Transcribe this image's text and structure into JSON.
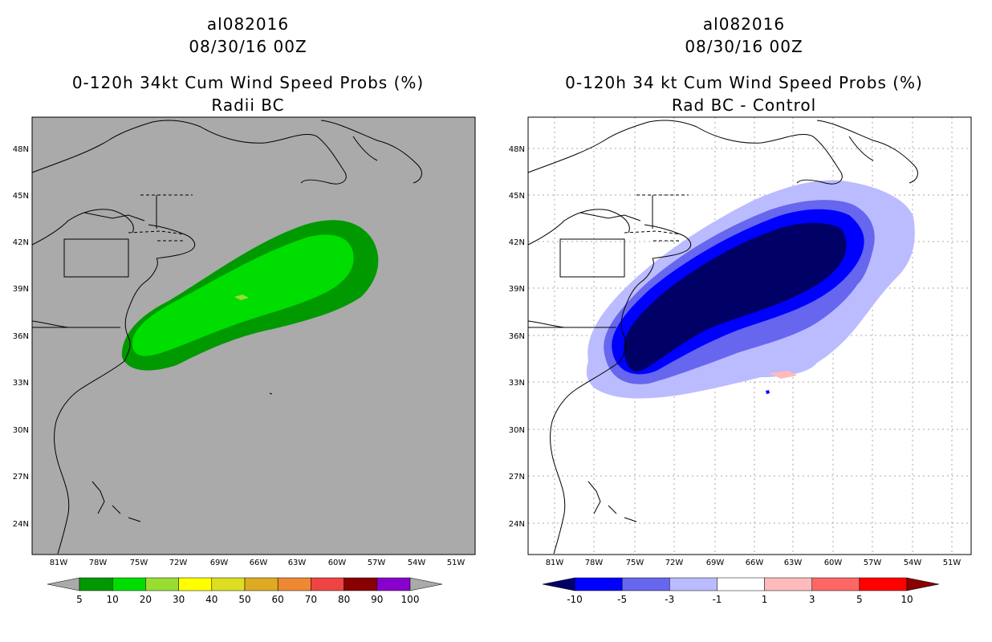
{
  "panels": [
    {
      "storm_id": "al082016",
      "datetime": "08/30/16 00Z",
      "title": "0-120h 34kt Cum Wind Speed Probs (%)",
      "subtitle": "Radii BC",
      "lat_labels": [
        "48N",
        "45N",
        "42N",
        "39N",
        "36N",
        "33N",
        "30N",
        "27N",
        "24N"
      ],
      "lon_labels": [
        "81W",
        "78W",
        "75W",
        "72W",
        "69W",
        "66W",
        "63W",
        "60W",
        "57W",
        "54W",
        "51W"
      ],
      "colorbar": {
        "labels": [
          "5",
          "10",
          "20",
          "30",
          "40",
          "50",
          "60",
          "70",
          "80",
          "90",
          "100"
        ],
        "colors": [
          "#009900",
          "#00dd00",
          "#99dd33",
          "#ffff00",
          "#dddd22",
          "#ddaa22",
          "#ee8833",
          "#ee4444",
          "#880000",
          "#8800cc"
        ],
        "end_left_color": "#aaaaaa",
        "end_right_color": "#aaaaaa"
      },
      "background_color": "#aaaaaa"
    },
    {
      "storm_id": "al082016",
      "datetime": "08/30/16 00Z",
      "title": "0-120h 34 kt Cum Wind Speed Probs (%)",
      "subtitle": "Rad BC - Control",
      "lat_labels": [
        "48N",
        "45N",
        "42N",
        "39N",
        "36N",
        "33N",
        "30N",
        "27N",
        "24N"
      ],
      "lon_labels": [
        "81W",
        "78W",
        "75W",
        "72W",
        "69W",
        "66W",
        "63W",
        "60W",
        "57W",
        "54W",
        "51W"
      ],
      "colorbar": {
        "labels": [
          "-10",
          "-5",
          "-3",
          "-1",
          "1",
          "3",
          "5",
          "10"
        ],
        "colors": [
          "#0000ff",
          "#6666ee",
          "#bbbbff",
          "#ffffff",
          "#ffbbbb",
          "#ff6666",
          "#ff0000"
        ],
        "end_left_color": "#000066",
        "end_right_color": "#880000"
      },
      "background_color": "#ffffff"
    }
  ]
}
